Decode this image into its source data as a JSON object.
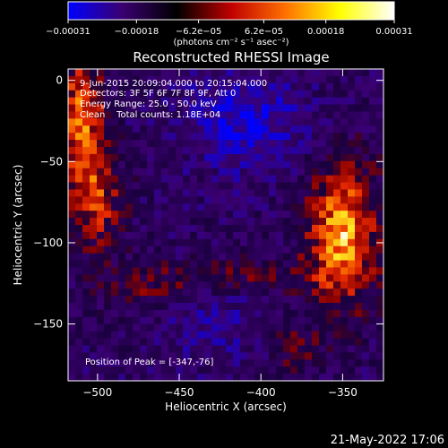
{
  "chart_data": {
    "type": "heatmap",
    "title": "Reconstructed RHESSI Image",
    "xlabel": "Heliocentric X (arcsec)",
    "ylabel": "Heliocentric Y (arcsec)",
    "xlim": [
      -518,
      -325
    ],
    "ylim": [
      -185,
      7
    ],
    "x_ticks": [
      -500,
      -450,
      -400,
      -350
    ],
    "y_ticks": [
      0,
      -50,
      -100,
      -150
    ],
    "x_tick_labels": [
      "−500",
      "−450",
      "−400",
      "−350"
    ],
    "y_tick_labels": [
      "0",
      "−50",
      "−100",
      "−150"
    ],
    "colorbar": {
      "range": [
        -0.00031,
        0.00031
      ],
      "ticks": [
        -0.00031,
        -0.00018,
        -6.2e-05,
        6.2e-05,
        0.00018,
        0.00031
      ],
      "tick_labels": [
        "−0.00031",
        "−0.00018",
        "−6.2e−05",
        "6.2e−05",
        "0.00018",
        "0.00031"
      ],
      "unit_label": "(photons cm⁻² s⁻¹ asec⁻²)",
      "colors": [
        "#0000ff",
        "#3a0070",
        "#000000",
        "#c00000",
        "#ff7000",
        "#ffff00",
        "#ffffff"
      ]
    },
    "annotations": [
      "9-Jun-2015 20:09:04.000 to 20:15:04.000",
      "Detectors: 3F 5F 6F 7F 8F 9F, Att 0",
      "Energy Range: 25.0 - 50.0 keV",
      "Clean    Total counts: 1.18E+04",
      "Position of Peak = [-347,-76]"
    ],
    "peak_position": [
      -347,
      -76
    ],
    "intensity_regions": [
      {
        "name": "left-arc",
        "x_range": [
          -518,
          -490
        ],
        "y_range": [
          -120,
          7
        ],
        "level": "high"
      },
      {
        "name": "right-source",
        "x_range": [
          -375,
          -325
        ],
        "y_range": [
          -150,
          -40
        ],
        "level": "peak"
      },
      {
        "name": "center-negative",
        "x_range": [
          -470,
          -380
        ],
        "y_range": [
          -100,
          7
        ],
        "level": "negative"
      },
      {
        "name": "lower-mottle",
        "x_range": [
          -518,
          -390
        ],
        "y_range": [
          -185,
          -110
        ],
        "level": "mixed"
      }
    ]
  },
  "footer": {
    "timestamp": "21-May-2022 17:06"
  }
}
